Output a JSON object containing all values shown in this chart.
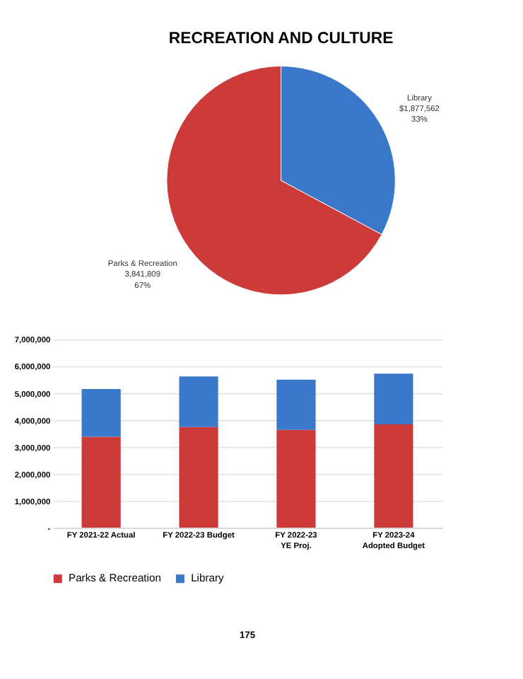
{
  "chart_data": [
    {
      "type": "pie",
      "title": "RECREATION AND CULTURE",
      "categories": [
        "Library",
        "Parks & Recreation"
      ],
      "values": [
        1877562,
        3841809
      ],
      "colors": [
        "#3a78c9",
        "#cc3a3a"
      ],
      "value_labels": [
        "$1,877,562\n33%",
        "3,841,809\n67%"
      ],
      "legend": false
    },
    {
      "type": "bar",
      "stacked": true,
      "categories": [
        "FY 2021-22 Actual",
        "FY 2022-23 Budget",
        "FY 2022-23\nYE Proj.",
        "FY 2023-24\nAdopted Budget"
      ],
      "series": [
        {
          "name": "Parks & Recreation",
          "color": "#cc3a3a",
          "values": [
            3380000,
            3740000,
            3630000,
            3840000
          ]
        },
        {
          "name": "Library",
          "color": "#3a78c9",
          "values": [
            1770000,
            1880000,
            1870000,
            1880000
          ]
        }
      ],
      "ylim": [
        0,
        7000000
      ],
      "yticks": [
        {
          "value": 0,
          "label": "-"
        },
        {
          "value": 1000000,
          "label": "1,000,000"
        },
        {
          "value": 2000000,
          "label": "2,000,000"
        },
        {
          "value": 3000000,
          "label": "3,000,000"
        },
        {
          "value": 4000000,
          "label": "4,000,000"
        },
        {
          "value": 5000000,
          "label": "5,000,000"
        },
        {
          "value": 6000000,
          "label": "6,000,000"
        },
        {
          "value": 7000000,
          "label": "7,000,000"
        }
      ],
      "grid": "y",
      "legend": "bottom",
      "annotations": [
        "175"
      ]
    }
  ]
}
